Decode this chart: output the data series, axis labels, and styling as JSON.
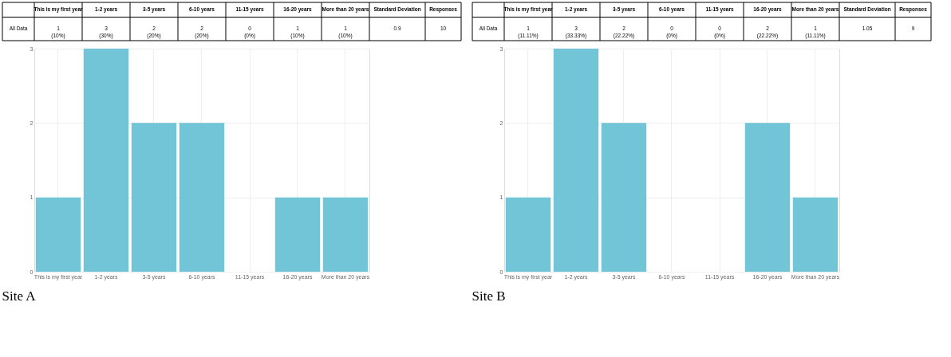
{
  "chart_data": [
    {
      "type": "bar",
      "title": "Site A",
      "categories": [
        "This is my first year",
        "1-2 years",
        "3-5 years",
        "6-10 years",
        "11-15 years",
        "16-20 years",
        "More than 20 years"
      ],
      "values": [
        1,
        3,
        2,
        2,
        0,
        1,
        1
      ],
      "color": "#72c5d6",
      "value_labels": [
        "1\n(10%)",
        "3\n(30%)",
        "2\n(20%)",
        "2\n(20%)",
        "0\n(0%)",
        "1\n(10%)",
        "1\n(10%)"
      ],
      "annotations": [
        "All Data",
        "Standard Deviation",
        "0.9",
        "Responses",
        "10"
      ],
      "ylim": [
        0,
        3
      ],
      "yticks": [
        0,
        1,
        2,
        3
      ],
      "grid": true
    },
    {
      "type": "bar",
      "title": "Site B",
      "categories": [
        "This is my first year",
        "1-2 years",
        "3-5 years",
        "6-10 years",
        "11-15 years",
        "16-20 years",
        "More than 20 years"
      ],
      "values": [
        1,
        3,
        2,
        0,
        0,
        2,
        1
      ],
      "color": "#72c5d6",
      "value_labels": [
        "1\n(11.11%)",
        "3\n(33.33%)",
        "2\n(22.22%)",
        "0\n(0%)",
        "0\n(0%)",
        "2\n(22.22%)",
        "1\n(11.11%)"
      ],
      "annotations": [
        "All Data",
        "Standard Deviation",
        "1.05",
        "Responses",
        "9"
      ],
      "ylim": [
        0,
        3
      ],
      "yticks": [
        0,
        1,
        2,
        3
      ],
      "grid": true
    }
  ]
}
